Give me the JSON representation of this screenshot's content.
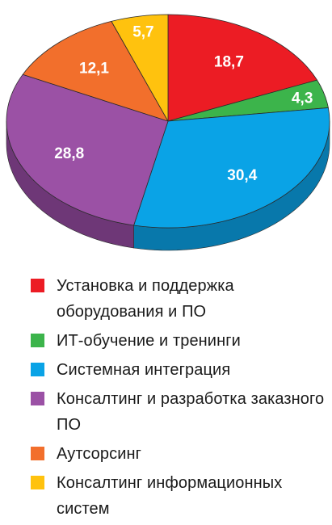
{
  "chart_data": {
    "type": "pie",
    "style": "3d",
    "decimal_separator": ",",
    "slices": [
      {
        "label": "Установка и поддержка оборудования и ПО",
        "value": 18.7,
        "display": "18,7",
        "color": "#ec1c24",
        "side": "#a8141a"
      },
      {
        "label": "ИТ-обучение и тренинги",
        "value": 4.3,
        "display": "4,3",
        "color": "#3cb44b",
        "side": "#2a8636"
      },
      {
        "label": "Системная интеграция",
        "value": 30.4,
        "display": "30,4",
        "color": "#0aa3e6",
        "side": "#0878ab"
      },
      {
        "label": "Консалтинг и разработка заказного ПО",
        "value": 28.8,
        "display": "28,8",
        "color": "#9b51a5",
        "side": "#6e3777"
      },
      {
        "label": "Аутсорсинг",
        "value": 12.1,
        "display": "12,1",
        "color": "#f26f2c",
        "side": "#b24f1c"
      },
      {
        "label": "Консалтинг информационных систем",
        "value": 5.7,
        "display": "5,7",
        "color": "#ffc20e",
        "side": "#c2930a"
      }
    ],
    "legend_position": "bottom"
  }
}
